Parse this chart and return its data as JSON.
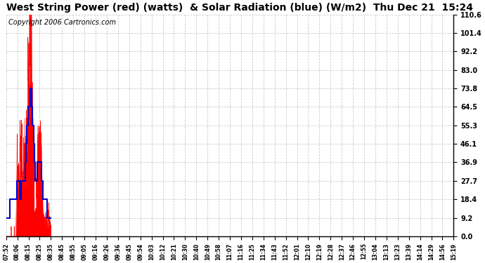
{
  "title": "West String Power (red) (watts)  & Solar Radiation (blue) (W/m2)  Thu Dec 21  15:24",
  "copyright": "Copyright 2006 Cartronics.com",
  "bg_color": "#ffffff",
  "plot_bg_color": "#ffffff",
  "grid_color": "#cccccc",
  "red_color": "#ff0000",
  "blue_color": "#0000cc",
  "y_ticks": [
    0.0,
    9.2,
    18.4,
    27.7,
    36.9,
    46.1,
    55.3,
    64.5,
    73.8,
    83.0,
    92.2,
    101.4,
    110.6
  ],
  "x_labels": [
    "07:52",
    "08:06",
    "08:15",
    "08:25",
    "08:35",
    "08:45",
    "08:55",
    "09:05",
    "09:16",
    "09:26",
    "09:36",
    "09:45",
    "09:54",
    "10:03",
    "10:12",
    "10:21",
    "10:30",
    "10:40",
    "10:49",
    "10:58",
    "11:07",
    "11:16",
    "11:25",
    "11:34",
    "11:43",
    "11:52",
    "12:01",
    "12:10",
    "12:19",
    "12:28",
    "12:37",
    "12:46",
    "12:55",
    "13:04",
    "13:13",
    "13:23",
    "13:39",
    "14:14",
    "14:29",
    "14:56",
    "15:19"
  ],
  "ylim": [
    0.0,
    110.6
  ],
  "title_fontsize": 10,
  "copyright_fontsize": 7
}
